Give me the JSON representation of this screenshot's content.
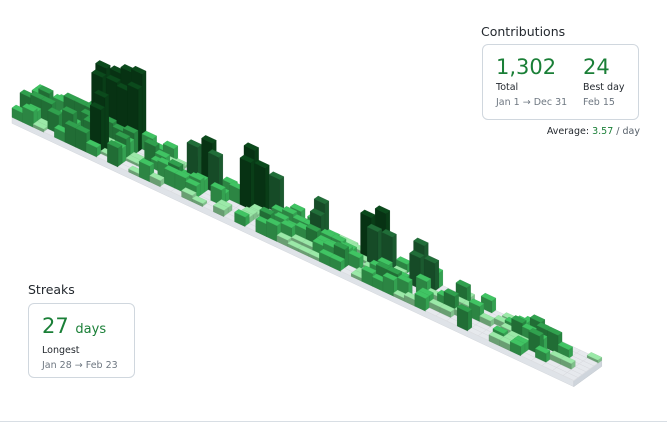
{
  "contributions": {
    "title": "Contributions",
    "total": {
      "value": "1,302",
      "label": "Total",
      "sub": "Jan 1 → Dec 31"
    },
    "best_day": {
      "value": "24",
      "label": "Best day",
      "sub": "Feb 15"
    },
    "average": {
      "prefix": "Average:",
      "value": "3.57",
      "unit": "/ day"
    }
  },
  "streaks": {
    "title": "Streaks",
    "longest": {
      "value": "27",
      "unit": "days",
      "label": "Longest",
      "sub": "Jan 28 → Feb 23"
    }
  },
  "chart_data": {
    "type": "3d-skyline",
    "weeks": 53,
    "days_per_week": 7,
    "max": 24,
    "colors": {
      "empty": "#ebedf0",
      "level1": "#9be9a8",
      "level2": "#40c463",
      "level3": "#30a14e",
      "level4": "#216e39",
      "level5": "#0b4a1c"
    }
  }
}
